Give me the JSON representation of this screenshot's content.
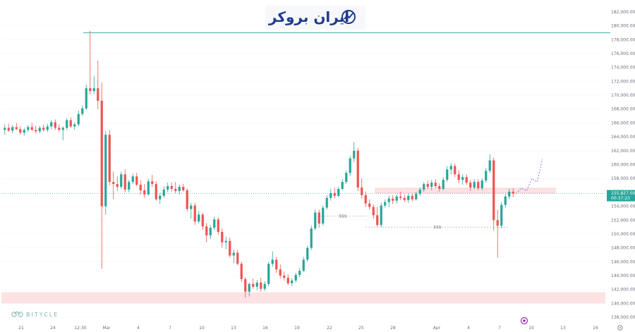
{
  "brand": {
    "top_logo_text": "ایران بروکر",
    "bottom_logo_text": "BITYCLE"
  },
  "colors": {
    "bull": "#26a69a",
    "bear": "#ef5350",
    "zone": "#fde2e4",
    "level": "#26a69a",
    "dotted_price_line": "#26a69a",
    "projection": "#5c6bc0"
  },
  "chart_data": {
    "type": "candlestick",
    "y_axis": {
      "ticks": [
        "182,000.00",
        "180,000.00",
        "178,000.00",
        "176,000.00",
        "174,000.00",
        "172,000.00",
        "170,000.00",
        "168,000.00",
        "166,000.00",
        "164,000.00",
        "162,000.00",
        "160,000.00",
        "158,000.00",
        "156,000.00",
        "154,000.00",
        "152,000.00",
        "150,000.00",
        "148,000.00",
        "146,000.00",
        "144,000.00",
        "142,000.00",
        "140,000.00",
        "138,000.00"
      ],
      "range": [
        137200,
        182700
      ]
    },
    "x_axis": {
      "ticks": [
        "21",
        "24",
        "12:30",
        "Mar",
        "4",
        "7",
        "10",
        "13",
        "16",
        "19",
        "22",
        "25",
        "28",
        "Apr",
        "4",
        "7",
        "10",
        "13",
        "16"
      ]
    },
    "current_price": {
      "price": "155,827.00",
      "countdown": "00:37:23",
      "value": 155827
    },
    "horizontal_level": 179000,
    "support_zone": [
      140000,
      141600
    ],
    "resistance_zone": [
      155900,
      156600
    ],
    "liquidity_labels": [
      {
        "label": "$$$",
        "level": 152600
      },
      {
        "label": "$$$",
        "level": 151000
      }
    ],
    "projection_path": [
      155800,
      156600,
      156200,
      158000,
      157500,
      160800
    ],
    "candles": [
      {
        "o": 165000,
        "h": 165800,
        "l": 164300,
        "c": 165300
      },
      {
        "o": 165300,
        "h": 165900,
        "l": 164700,
        "c": 164900
      },
      {
        "o": 164900,
        "h": 165700,
        "l": 164500,
        "c": 165400
      },
      {
        "o": 165400,
        "h": 166000,
        "l": 165000,
        "c": 165100
      },
      {
        "o": 165100,
        "h": 165500,
        "l": 164300,
        "c": 164600
      },
      {
        "o": 164600,
        "h": 165300,
        "l": 164200,
        "c": 165000
      },
      {
        "o": 165000,
        "h": 165700,
        "l": 164700,
        "c": 165400
      },
      {
        "o": 165400,
        "h": 166000,
        "l": 164900,
        "c": 165000
      },
      {
        "o": 165000,
        "h": 165600,
        "l": 164500,
        "c": 164800
      },
      {
        "o": 164800,
        "h": 165600,
        "l": 164500,
        "c": 165300
      },
      {
        "o": 165300,
        "h": 165800,
        "l": 164800,
        "c": 165000
      },
      {
        "o": 165000,
        "h": 165900,
        "l": 164700,
        "c": 165500
      },
      {
        "o": 165500,
        "h": 166400,
        "l": 165100,
        "c": 166100
      },
      {
        "o": 166100,
        "h": 166500,
        "l": 165000,
        "c": 165300
      },
      {
        "o": 165300,
        "h": 165800,
        "l": 164800,
        "c": 165000
      },
      {
        "o": 165000,
        "h": 165500,
        "l": 163500,
        "c": 165300
      },
      {
        "o": 165300,
        "h": 166700,
        "l": 165000,
        "c": 166400
      },
      {
        "o": 166400,
        "h": 166800,
        "l": 165300,
        "c": 165500
      },
      {
        "o": 165500,
        "h": 166100,
        "l": 165000,
        "c": 165800
      },
      {
        "o": 165800,
        "h": 167800,
        "l": 165500,
        "c": 167300
      },
      {
        "o": 167300,
        "h": 168500,
        "l": 167000,
        "c": 168100
      },
      {
        "o": 168100,
        "h": 171500,
        "l": 167900,
        "c": 171000
      },
      {
        "o": 171000,
        "h": 179300,
        "l": 170100,
        "c": 170600
      },
      {
        "o": 170600,
        "h": 172800,
        "l": 170200,
        "c": 171000
      },
      {
        "o": 171000,
        "h": 175000,
        "l": 168000,
        "c": 169200
      },
      {
        "o": 169200,
        "h": 171800,
        "l": 145000,
        "c": 154000
      },
      {
        "o": 154000,
        "h": 164800,
        "l": 152800,
        "c": 164300
      },
      {
        "o": 164300,
        "h": 165000,
        "l": 157000,
        "c": 157500
      },
      {
        "o": 157500,
        "h": 159000,
        "l": 155000,
        "c": 157200
      },
      {
        "o": 157200,
        "h": 158300,
        "l": 156200,
        "c": 156800
      },
      {
        "o": 156800,
        "h": 159000,
        "l": 156500,
        "c": 158600
      },
      {
        "o": 158600,
        "h": 159300,
        "l": 156000,
        "c": 156400
      },
      {
        "o": 156400,
        "h": 157800,
        "l": 156000,
        "c": 157500
      },
      {
        "o": 157500,
        "h": 158700,
        "l": 157200,
        "c": 158300
      },
      {
        "o": 158300,
        "h": 158800,
        "l": 156900,
        "c": 157100
      },
      {
        "o": 157100,
        "h": 157800,
        "l": 155700,
        "c": 156300
      },
      {
        "o": 156300,
        "h": 157200,
        "l": 155200,
        "c": 155700
      },
      {
        "o": 155700,
        "h": 158000,
        "l": 155500,
        "c": 157600
      },
      {
        "o": 157600,
        "h": 158500,
        "l": 156800,
        "c": 157200
      },
      {
        "o": 157200,
        "h": 157600,
        "l": 154800,
        "c": 155000
      },
      {
        "o": 155000,
        "h": 155900,
        "l": 154300,
        "c": 155500
      },
      {
        "o": 155500,
        "h": 156900,
        "l": 155200,
        "c": 156400
      },
      {
        "o": 156400,
        "h": 157400,
        "l": 156000,
        "c": 156900
      },
      {
        "o": 156900,
        "h": 157400,
        "l": 156100,
        "c": 156500
      },
      {
        "o": 156500,
        "h": 157500,
        "l": 155900,
        "c": 156200
      },
      {
        "o": 156200,
        "h": 157100,
        "l": 155700,
        "c": 156800
      },
      {
        "o": 156800,
        "h": 157200,
        "l": 156100,
        "c": 156300
      },
      {
        "o": 156300,
        "h": 156600,
        "l": 153200,
        "c": 153600
      },
      {
        "o": 153600,
        "h": 154500,
        "l": 152200,
        "c": 154100
      },
      {
        "o": 154100,
        "h": 154500,
        "l": 151300,
        "c": 151800
      },
      {
        "o": 151800,
        "h": 153300,
        "l": 151500,
        "c": 152800
      },
      {
        "o": 152800,
        "h": 153100,
        "l": 150600,
        "c": 151100
      },
      {
        "o": 151100,
        "h": 151600,
        "l": 148800,
        "c": 149800
      },
      {
        "o": 149800,
        "h": 151300,
        "l": 149300,
        "c": 150900
      },
      {
        "o": 150900,
        "h": 152500,
        "l": 150600,
        "c": 152100
      },
      {
        "o": 152100,
        "h": 152400,
        "l": 149900,
        "c": 150300
      },
      {
        "o": 150300,
        "h": 150800,
        "l": 148000,
        "c": 148800
      },
      {
        "o": 148800,
        "h": 149600,
        "l": 147800,
        "c": 149000
      },
      {
        "o": 149000,
        "h": 149500,
        "l": 146600,
        "c": 146900
      },
      {
        "o": 146900,
        "h": 147700,
        "l": 145800,
        "c": 147300
      },
      {
        "o": 147300,
        "h": 147700,
        "l": 145500,
        "c": 145700
      },
      {
        "o": 145700,
        "h": 146000,
        "l": 143100,
        "c": 143500
      },
      {
        "o": 143500,
        "h": 143800,
        "l": 140800,
        "c": 141700
      },
      {
        "o": 141700,
        "h": 143000,
        "l": 141000,
        "c": 142800
      },
      {
        "o": 142800,
        "h": 143600,
        "l": 142100,
        "c": 142400
      },
      {
        "o": 142400,
        "h": 143400,
        "l": 141900,
        "c": 143000
      },
      {
        "o": 143000,
        "h": 143700,
        "l": 141700,
        "c": 142100
      },
      {
        "o": 142100,
        "h": 143200,
        "l": 141800,
        "c": 142800
      },
      {
        "o": 142800,
        "h": 146000,
        "l": 142500,
        "c": 145700
      },
      {
        "o": 145700,
        "h": 147500,
        "l": 145300,
        "c": 146300
      },
      {
        "o": 146300,
        "h": 146700,
        "l": 144400,
        "c": 144900
      },
      {
        "o": 144900,
        "h": 145600,
        "l": 143600,
        "c": 144000
      },
      {
        "o": 144000,
        "h": 144600,
        "l": 143300,
        "c": 143700
      },
      {
        "o": 143700,
        "h": 144200,
        "l": 142600,
        "c": 142900
      },
      {
        "o": 142900,
        "h": 143600,
        "l": 142500,
        "c": 143300
      },
      {
        "o": 143300,
        "h": 144400,
        "l": 143000,
        "c": 144100
      },
      {
        "o": 144100,
        "h": 145100,
        "l": 143800,
        "c": 144700
      },
      {
        "o": 144700,
        "h": 146700,
        "l": 144500,
        "c": 146300
      },
      {
        "o": 146300,
        "h": 148300,
        "l": 146000,
        "c": 148000
      },
      {
        "o": 148000,
        "h": 151200,
        "l": 147700,
        "c": 150800
      },
      {
        "o": 150800,
        "h": 153500,
        "l": 150500,
        "c": 153100
      },
      {
        "o": 153100,
        "h": 153500,
        "l": 150900,
        "c": 151500
      },
      {
        "o": 151500,
        "h": 154100,
        "l": 151200,
        "c": 153800
      },
      {
        "o": 153800,
        "h": 155600,
        "l": 153500,
        "c": 155200
      },
      {
        "o": 155200,
        "h": 156500,
        "l": 154800,
        "c": 155900
      },
      {
        "o": 155900,
        "h": 156700,
        "l": 155100,
        "c": 155500
      },
      {
        "o": 155500,
        "h": 156800,
        "l": 155300,
        "c": 156500
      },
      {
        "o": 156500,
        "h": 157900,
        "l": 156300,
        "c": 157500
      },
      {
        "o": 157500,
        "h": 159100,
        "l": 157200,
        "c": 158800
      },
      {
        "o": 158800,
        "h": 161300,
        "l": 158400,
        "c": 160900
      },
      {
        "o": 160900,
        "h": 163200,
        "l": 160400,
        "c": 162000
      },
      {
        "o": 162000,
        "h": 162400,
        "l": 156200,
        "c": 156700
      },
      {
        "o": 156700,
        "h": 158000,
        "l": 155100,
        "c": 155600
      },
      {
        "o": 155600,
        "h": 156100,
        "l": 153900,
        "c": 154400
      },
      {
        "o": 154400,
        "h": 155000,
        "l": 153500,
        "c": 153900
      },
      {
        "o": 153900,
        "h": 154300,
        "l": 152200,
        "c": 152700
      },
      {
        "o": 152700,
        "h": 153900,
        "l": 151000,
        "c": 151300
      },
      {
        "o": 151300,
        "h": 154500,
        "l": 151000,
        "c": 154100
      },
      {
        "o": 154100,
        "h": 155000,
        "l": 153800,
        "c": 154600
      },
      {
        "o": 154600,
        "h": 155500,
        "l": 153900,
        "c": 155100
      },
      {
        "o": 155100,
        "h": 155600,
        "l": 154300,
        "c": 154800
      },
      {
        "o": 154800,
        "h": 155700,
        "l": 154400,
        "c": 155400
      },
      {
        "o": 155400,
        "h": 156100,
        "l": 154900,
        "c": 155200
      },
      {
        "o": 155200,
        "h": 155700,
        "l": 154600,
        "c": 154900
      },
      {
        "o": 154900,
        "h": 155900,
        "l": 154500,
        "c": 155500
      },
      {
        "o": 155500,
        "h": 155800,
        "l": 154700,
        "c": 155000
      },
      {
        "o": 155000,
        "h": 156100,
        "l": 154800,
        "c": 155800
      },
      {
        "o": 155800,
        "h": 156700,
        "l": 155500,
        "c": 156400
      },
      {
        "o": 156400,
        "h": 157500,
        "l": 156100,
        "c": 157200
      },
      {
        "o": 157200,
        "h": 157700,
        "l": 156500,
        "c": 156800
      },
      {
        "o": 156800,
        "h": 157800,
        "l": 156300,
        "c": 157400
      },
      {
        "o": 157400,
        "h": 157900,
        "l": 156600,
        "c": 156900
      },
      {
        "o": 156900,
        "h": 157300,
        "l": 156100,
        "c": 156500
      },
      {
        "o": 156500,
        "h": 158200,
        "l": 156300,
        "c": 157800
      },
      {
        "o": 157800,
        "h": 159800,
        "l": 157500,
        "c": 159300
      },
      {
        "o": 159300,
        "h": 160200,
        "l": 158600,
        "c": 159800
      },
      {
        "o": 159800,
        "h": 160100,
        "l": 158200,
        "c": 158600
      },
      {
        "o": 158600,
        "h": 159200,
        "l": 157300,
        "c": 157800
      },
      {
        "o": 157800,
        "h": 158600,
        "l": 157100,
        "c": 158200
      },
      {
        "o": 158200,
        "h": 158600,
        "l": 157100,
        "c": 157400
      },
      {
        "o": 157400,
        "h": 157800,
        "l": 156200,
        "c": 156700
      },
      {
        "o": 156700,
        "h": 157900,
        "l": 156400,
        "c": 157500
      },
      {
        "o": 157500,
        "h": 157900,
        "l": 156300,
        "c": 156600
      },
      {
        "o": 156600,
        "h": 158000,
        "l": 156300,
        "c": 157700
      },
      {
        "o": 157700,
        "h": 159500,
        "l": 157400,
        "c": 159100
      },
      {
        "o": 159100,
        "h": 161500,
        "l": 158800,
        "c": 160600
      },
      {
        "o": 160600,
        "h": 161000,
        "l": 150500,
        "c": 152000
      },
      {
        "o": 152000,
        "h": 153500,
        "l": 146600,
        "c": 151200
      },
      {
        "o": 151200,
        "h": 154600,
        "l": 150800,
        "c": 154200
      },
      {
        "o": 154200,
        "h": 155800,
        "l": 153800,
        "c": 155400
      },
      {
        "o": 155400,
        "h": 156500,
        "l": 155000,
        "c": 156100
      },
      {
        "o": 156100,
        "h": 156600,
        "l": 155300,
        "c": 155827
      }
    ]
  }
}
